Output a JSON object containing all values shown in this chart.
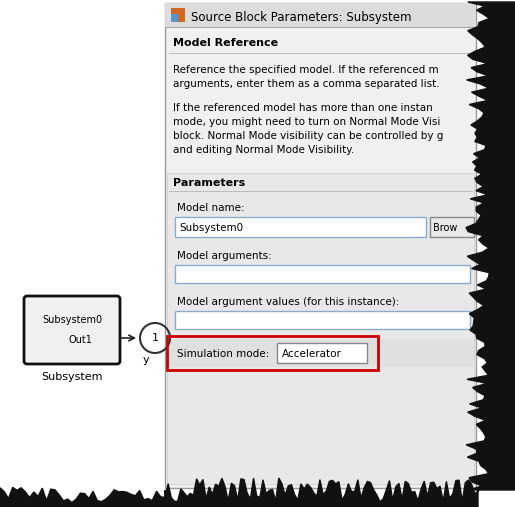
{
  "bg_color": "#ffffff",
  "dialog_title": "Source Block Parameters: Subsystem",
  "dialog_bg": "#f0f0f0",
  "section_model_ref": "Model Reference",
  "desc1_line1": "Reference the specified model. If the referenced m",
  "desc1_line2": "arguments, enter them as a comma separated list.",
  "desc2_line1": "If the referenced model has more than one instan",
  "desc2_line2": "mode, you might need to turn on Normal Mode Visi",
  "desc2_line3": "block. Normal Mode visibility can be controlled by g",
  "desc2_line4": "and editing Normal Mode Visibility.",
  "section_params": "Parameters",
  "label_model_name": "Model name:",
  "field_model_name": "Subsystem0",
  "label_model_args": "Model arguments:",
  "label_model_arg_vals": "Model argument values (for this instance):",
  "label_sim_mode": "Simulation mode:",
  "sim_mode_value": "Accelerator",
  "red_box_color": "#cc0000",
  "subsystem_label": "Subsystem",
  "subsystem_block_label": "Subsystem0",
  "subsystem_out_label": "Out1",
  "outport_label": "1",
  "outport_sublabel": "y",
  "jagged_color": "#111111",
  "dialog_header_bg": "#dcdcdc",
  "field_bg": "#ffffff",
  "field_border": "#8aaccc",
  "button_bg": "#e8e8e8",
  "text_color_blue": "#0000cc",
  "section_line_color": "#bbbbbb",
  "params_bg": "#e8e8e8"
}
